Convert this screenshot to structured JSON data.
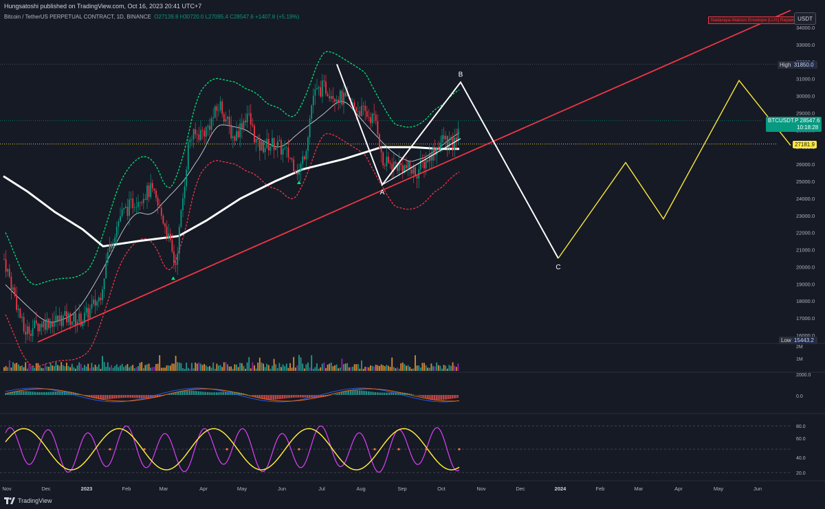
{
  "header": {
    "published": "Hungsatoshi published on TradingView.com, Oct 16, 2023 20:41 UTC+7",
    "symbol": "Bitcoin / TetherUS PERPETUAL CONTRACT, 1D, BINANCE",
    "ohlc": "O27139.8 H30720.0 L27095.4 C28547.6 +1407.8 (+5.19%)"
  },
  "indicator_label": "Nadaraya-Watson Envelope [LUX] Repaints",
  "currency": "USDT",
  "footer": {
    "brand": "TradingView"
  },
  "colors": {
    "background": "#161a25",
    "up": "#089981",
    "down": "#f23645",
    "projection": "#ffeb3b",
    "trendline": "#f23645",
    "wave": "#ffffff"
  },
  "chart_data": {
    "type": "candlestick",
    "price_axis": {
      "labels": [
        "34000.0",
        "33000.0",
        "32000.0",
        "31000.0",
        "30000.0",
        "29000.0",
        "28000.0",
        "27000.0",
        "26000.0",
        "25000.0",
        "24000.0",
        "23000.0",
        "22000.0",
        "21000.0",
        "20000.0",
        "19000.0",
        "18000.0",
        "17000.0",
        "16000.0"
      ],
      "ylim": [
        15443.2,
        34600
      ]
    },
    "price_tags": {
      "high": {
        "label": "High",
        "value": "31850.0"
      },
      "low": {
        "label": "Low",
        "value": "15443.2"
      },
      "last": {
        "label": "BTCUSDT.P",
        "value": "28547.6",
        "countdown": "10:18:28"
      },
      "marker": {
        "value": "27181.9"
      }
    },
    "time_axis": [
      "Nov",
      "Dec",
      "2023",
      "Feb",
      "Mar",
      "Apr",
      "May",
      "Jun",
      "Jul",
      "Aug",
      "Sep",
      "Oct",
      "Nov",
      "Dec",
      "2024",
      "Feb",
      "Mar",
      "Apr",
      "May",
      "Jun"
    ],
    "wave_labels": [
      "A",
      "B",
      "C"
    ],
    "volume_axis": [
      "2M",
      "1M"
    ],
    "macd_axis": [
      "2000.0",
      "0.0"
    ],
    "stoch_axis": [
      "80.0",
      "60.0",
      "40.0",
      "20.0"
    ]
  }
}
